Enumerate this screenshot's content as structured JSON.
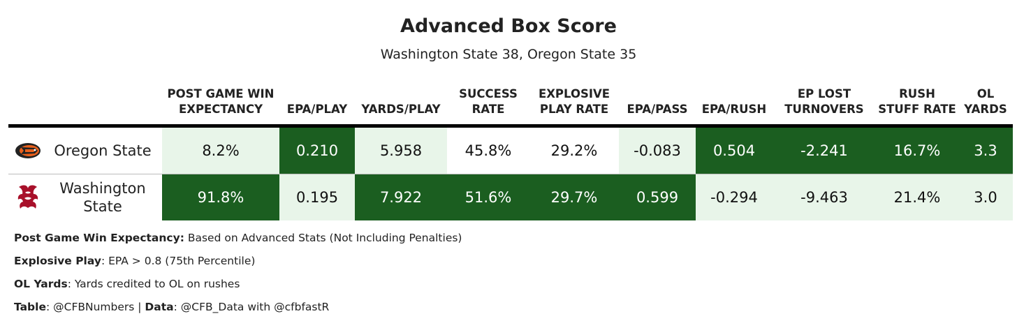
{
  "title": "Advanced Box Score",
  "subtitle": "Washington State 38, Oregon State 35",
  "colors": {
    "dark_green": "#1b5e20",
    "light_green": "#e8f5e9",
    "rule": "#000000"
  },
  "chart_data": {
    "type": "table",
    "columns": [
      "POST GAME WIN EXPECTANCY",
      "EPA/PLAY",
      "YARDS/PLAY",
      "SUCCESS RATE",
      "EXPLOSIVE PLAY RATE",
      "EPA/PASS",
      "EPA/RUSH",
      "EP LOST TURNOVERS",
      "RUSH STUFF RATE",
      "OL YARDS"
    ],
    "rows": [
      {
        "team": "Oregon State",
        "logo": "beaver-logo-icon",
        "values": [
          "8.2%",
          "0.210",
          "5.958",
          "45.8%",
          "29.2%",
          "-0.083",
          "0.504",
          "-2.241",
          "16.7%",
          "3.3"
        ],
        "shading": [
          "light",
          "dark",
          "light",
          "none",
          "none",
          "light",
          "dark",
          "dark",
          "dark",
          "dark"
        ]
      },
      {
        "team": "Washington State",
        "logo": "cougar-logo-icon",
        "values": [
          "91.8%",
          "0.195",
          "7.922",
          "51.6%",
          "29.7%",
          "0.599",
          "-0.294",
          "-9.463",
          "21.4%",
          "3.0"
        ],
        "shading": [
          "dark",
          "light",
          "dark",
          "dark",
          "dark",
          "dark",
          "light",
          "light",
          "light",
          "light"
        ]
      }
    ]
  },
  "footnotes": [
    {
      "label": "Post Game Win Expectancy:",
      "text": " Based on Advanced Stats (Not Including Penalties)"
    },
    {
      "label": "Explosive Play",
      "text": ": EPA > 0.8 (75th Percentile)"
    },
    {
      "label": "OL Yards",
      "text": ": Yards credited to OL on rushes"
    }
  ],
  "credits": {
    "table_label": "Table",
    "table_text": ": @CFBNumbers | ",
    "data_label": "Data",
    "data_text": ": @CFB_Data with @cfbfastR"
  }
}
